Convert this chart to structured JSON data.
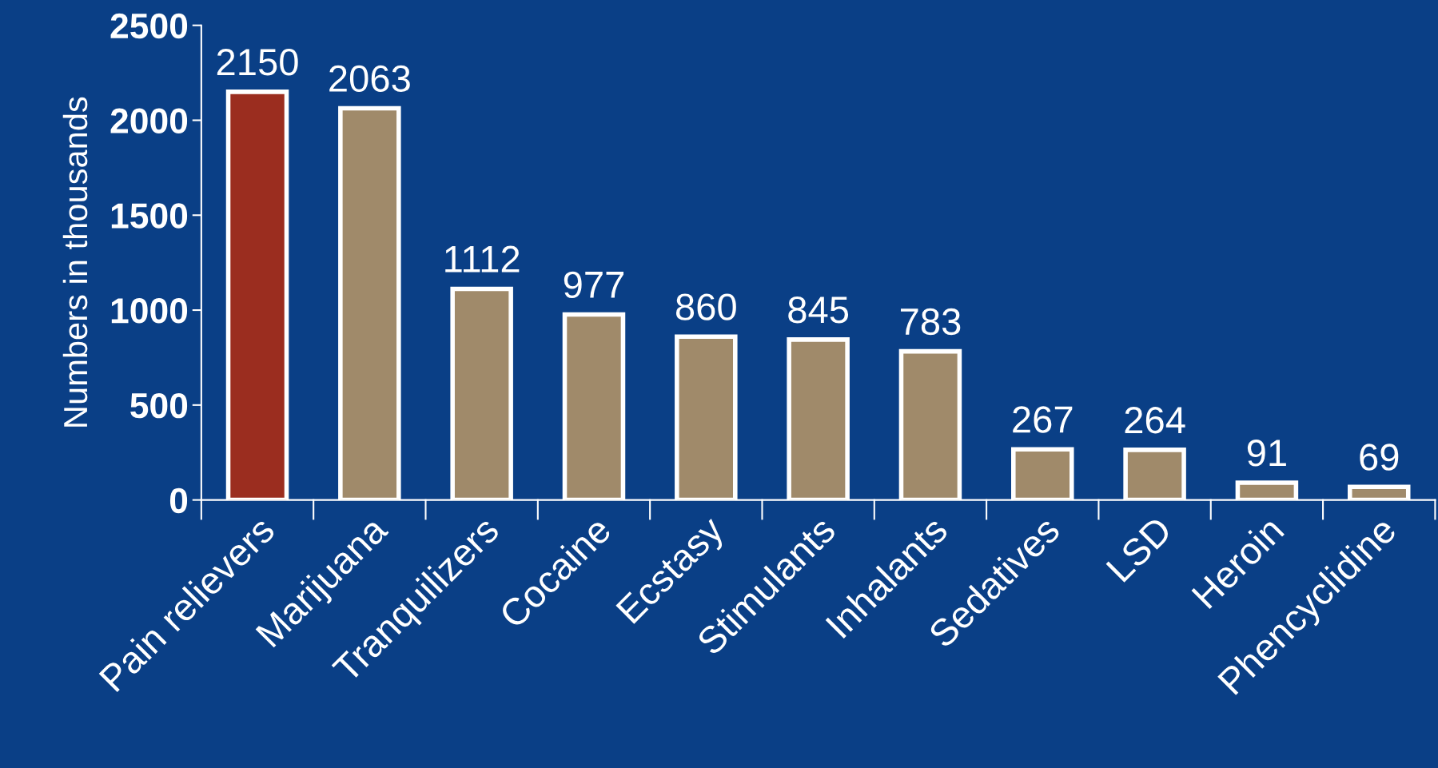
{
  "chart_data": {
    "type": "bar",
    "ylabel": "Numbers in thousands",
    "categories": [
      "Pain relievers",
      "Marijuana",
      "Tranquilizers",
      "Cocaine",
      "Ecstasy",
      "Stimulants",
      "Inhalants",
      "Sedatives",
      "LSD",
      "Heroin",
      "Phencyclidine"
    ],
    "values": [
      2150,
      2063,
      1112,
      977,
      860,
      845,
      783,
      267,
      264,
      91,
      69
    ],
    "colors": [
      "#9b2d1f",
      "#a08a6a",
      "#a08a6a",
      "#a08a6a",
      "#a08a6a",
      "#a08a6a",
      "#a08a6a",
      "#a08a6a",
      "#a08a6a",
      "#a08a6a",
      "#a08a6a"
    ],
    "ylim": [
      0,
      2500
    ],
    "yticks": [
      0,
      500,
      1000,
      1500,
      2000,
      2500
    ],
    "data_labels": true,
    "grid": false,
    "legend": false
  }
}
